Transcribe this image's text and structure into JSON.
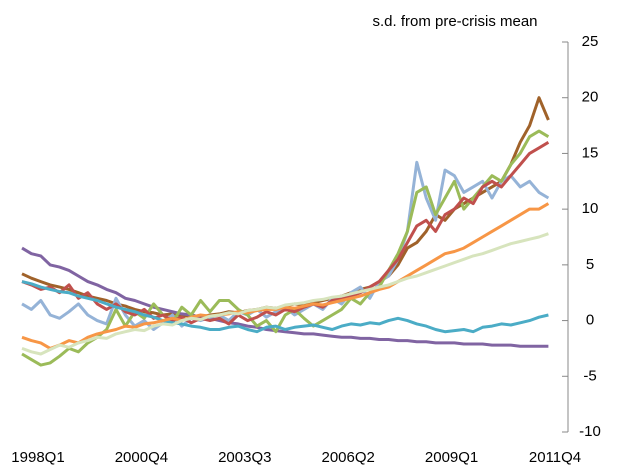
{
  "chart_data": {
    "type": "line",
    "title": "s.d. from pre-crisis mean",
    "categories": [
      "1998Q1",
      null,
      null,
      null,
      null,
      null,
      null,
      null,
      null,
      null,
      null,
      "2000Q4",
      null,
      null,
      null,
      null,
      null,
      null,
      null,
      null,
      null,
      null,
      "2003Q3",
      null,
      null,
      null,
      null,
      null,
      null,
      null,
      null,
      null,
      null,
      "2006Q2",
      null,
      null,
      null,
      null,
      null,
      null,
      null,
      null,
      null,
      null,
      "2009Q1",
      null,
      null,
      null,
      null,
      null,
      null,
      null,
      null,
      null,
      null,
      "2011Q4",
      null
    ],
    "ylim": [
      -10,
      25
    ],
    "yticks": [
      -10,
      -5,
      0,
      5,
      10,
      15,
      20,
      25
    ],
    "series": [
      {
        "color": "#a0622a",
        "values": [
          4.2,
          3.8,
          3.5,
          3.2,
          3.0,
          2.8,
          2.5,
          2.2,
          2.0,
          1.8,
          1.5,
          1.3,
          1.0,
          0.8,
          0.7,
          0.5,
          0.6,
          0.4,
          0.5,
          0.3,
          0.5,
          0.6,
          0.8,
          0.7,
          0.9,
          1.0,
          1.2,
          1.1,
          1.3,
          1.5,
          1.4,
          1.6,
          1.8,
          2.0,
          2.2,
          2.5,
          2.8,
          3.0,
          3.5,
          4.0,
          5.0,
          6.5,
          7.0,
          8.0,
          9.5,
          9.0,
          10.0,
          10.5,
          11.0,
          11.5,
          12.0,
          12.5,
          14.0,
          16.0,
          17.5,
          20.0,
          18.0
        ]
      },
      {
        "color": "#8064a2",
        "values": [
          6.5,
          6.0,
          5.8,
          5.0,
          4.8,
          4.5,
          4.0,
          3.5,
          3.2,
          2.8,
          2.5,
          2.0,
          1.8,
          1.5,
          1.2,
          1.0,
          0.8,
          0.6,
          0.5,
          0.3,
          0.2,
          0.0,
          -0.2,
          -0.3,
          -0.5,
          -0.6,
          -0.8,
          -0.9,
          -1.0,
          -1.1,
          -1.2,
          -1.2,
          -1.3,
          -1.4,
          -1.5,
          -1.5,
          -1.6,
          -1.6,
          -1.7,
          -1.7,
          -1.8,
          -1.8,
          -1.9,
          -1.9,
          -2.0,
          -2.0,
          -2.0,
          -2.1,
          -2.1,
          -2.1,
          -2.2,
          -2.2,
          -2.2,
          -2.3,
          -2.3,
          -2.3,
          -2.3
        ]
      },
      {
        "color": "#95b3d7",
        "values": [
          1.5,
          1.0,
          1.8,
          0.5,
          0.2,
          0.8,
          1.5,
          0.5,
          0.0,
          -0.3,
          2.0,
          0.5,
          -0.5,
          0.0,
          -0.8,
          -0.2,
          0.5,
          -0.5,
          0.2,
          0.0,
          0.3,
          0.5,
          0.0,
          0.8,
          0.5,
          1.0,
          0.3,
          0.8,
          1.2,
          0.5,
          1.0,
          1.5,
          1.0,
          2.0,
          1.5,
          2.5,
          3.0,
          2.0,
          3.5,
          4.0,
          5.5,
          8.0,
          14.2,
          11.0,
          9.0,
          13.5,
          13.0,
          11.5,
          12.0,
          12.5,
          11.0,
          12.5,
          13.0,
          12.0,
          12.5,
          11.5,
          11.0
        ]
      },
      {
        "color": "#9bbb59",
        "values": [
          -3.0,
          -3.5,
          -4.0,
          -3.8,
          -3.2,
          -2.5,
          -2.8,
          -2.0,
          -1.5,
          -0.8,
          1.0,
          -0.5,
          0.8,
          0.2,
          1.5,
          0.5,
          -0.2,
          1.2,
          0.5,
          1.8,
          0.8,
          1.8,
          1.8,
          1.0,
          0.5,
          -0.5,
          0.0,
          -1.0,
          0.5,
          1.0,
          0.2,
          -0.5,
          0.0,
          0.5,
          1.0,
          2.0,
          1.5,
          2.5,
          3.0,
          4.5,
          6.0,
          8.0,
          11.5,
          12.0,
          9.5,
          11.0,
          12.5,
          10.0,
          11.0,
          12.0,
          13.0,
          12.5,
          14.0,
          15.0,
          16.5,
          17.0,
          16.5
        ]
      },
      {
        "color": "#c0504d",
        "values": [
          3.5,
          3.2,
          2.8,
          3.0,
          2.5,
          3.2,
          2.0,
          2.5,
          1.5,
          1.0,
          1.5,
          0.8,
          0.5,
          1.0,
          0.2,
          0.5,
          0.0,
          0.3,
          -0.2,
          0.2,
          0.0,
          0.2,
          -0.3,
          0.5,
          0.0,
          0.3,
          0.8,
          0.5,
          1.0,
          0.8,
          1.2,
          1.5,
          1.2,
          1.8,
          2.0,
          2.2,
          2.5,
          3.0,
          3.5,
          4.5,
          5.5,
          7.0,
          8.5,
          9.0,
          8.0,
          9.5,
          10.0,
          11.0,
          10.5,
          12.0,
          12.5,
          12.0,
          13.0,
          14.0,
          15.0,
          15.5,
          16.0
        ]
      },
      {
        "color": "#4bacc6",
        "values": [
          3.5,
          3.3,
          3.0,
          2.8,
          2.6,
          2.5,
          2.2,
          2.0,
          1.8,
          1.5,
          1.2,
          1.0,
          0.8,
          0.5,
          0.3,
          0.0,
          -0.2,
          -0.3,
          -0.5,
          -0.6,
          -0.8,
          -0.8,
          -0.6,
          -0.5,
          -0.8,
          -1.0,
          -0.6,
          -0.5,
          -0.8,
          -0.6,
          -0.5,
          -0.4,
          -0.6,
          -0.8,
          -0.5,
          -0.3,
          -0.4,
          -0.2,
          -0.3,
          0.0,
          0.2,
          0.0,
          -0.3,
          -0.5,
          -0.8,
          -1.0,
          -0.9,
          -0.8,
          -1.0,
          -0.6,
          -0.5,
          -0.3,
          -0.4,
          -0.2,
          0.0,
          0.3,
          0.5
        ]
      },
      {
        "color": "#f79646",
        "values": [
          -1.5,
          -1.8,
          -2.0,
          -2.5,
          -2.2,
          -1.8,
          -2.0,
          -1.5,
          -1.2,
          -1.0,
          -0.8,
          -0.5,
          -0.6,
          -0.3,
          -0.2,
          0.0,
          0.2,
          0.0,
          0.3,
          0.5,
          0.4,
          0.5,
          0.6,
          0.8,
          0.7,
          0.9,
          1.0,
          1.0,
          1.2,
          1.1,
          1.3,
          1.5,
          1.4,
          1.6,
          1.8,
          2.0,
          2.2,
          2.5,
          2.8,
          3.0,
          3.5,
          4.0,
          4.5,
          5.0,
          5.5,
          6.0,
          6.2,
          6.5,
          7.0,
          7.5,
          8.0,
          8.5,
          9.0,
          9.5,
          10.0,
          10.0,
          10.5
        ]
      },
      {
        "color": "#d7e4bd",
        "values": [
          -2.5,
          -2.8,
          -3.0,
          -2.6,
          -2.2,
          -2.4,
          -2.0,
          -1.8,
          -1.5,
          -1.6,
          -1.2,
          -1.0,
          -0.8,
          -0.9,
          -0.5,
          -0.3,
          -0.4,
          0.0,
          0.2,
          0.1,
          0.4,
          0.5,
          0.7,
          0.6,
          0.9,
          1.0,
          1.2,
          1.1,
          1.4,
          1.5,
          1.6,
          1.8,
          1.9,
          2.1,
          2.2,
          2.4,
          2.6,
          2.8,
          3.0,
          3.2,
          3.5,
          3.8,
          4.0,
          4.3,
          4.6,
          4.9,
          5.2,
          5.5,
          5.8,
          6.0,
          6.3,
          6.6,
          6.9,
          7.1,
          7.3,
          7.5,
          7.8
        ]
      }
    ]
  }
}
